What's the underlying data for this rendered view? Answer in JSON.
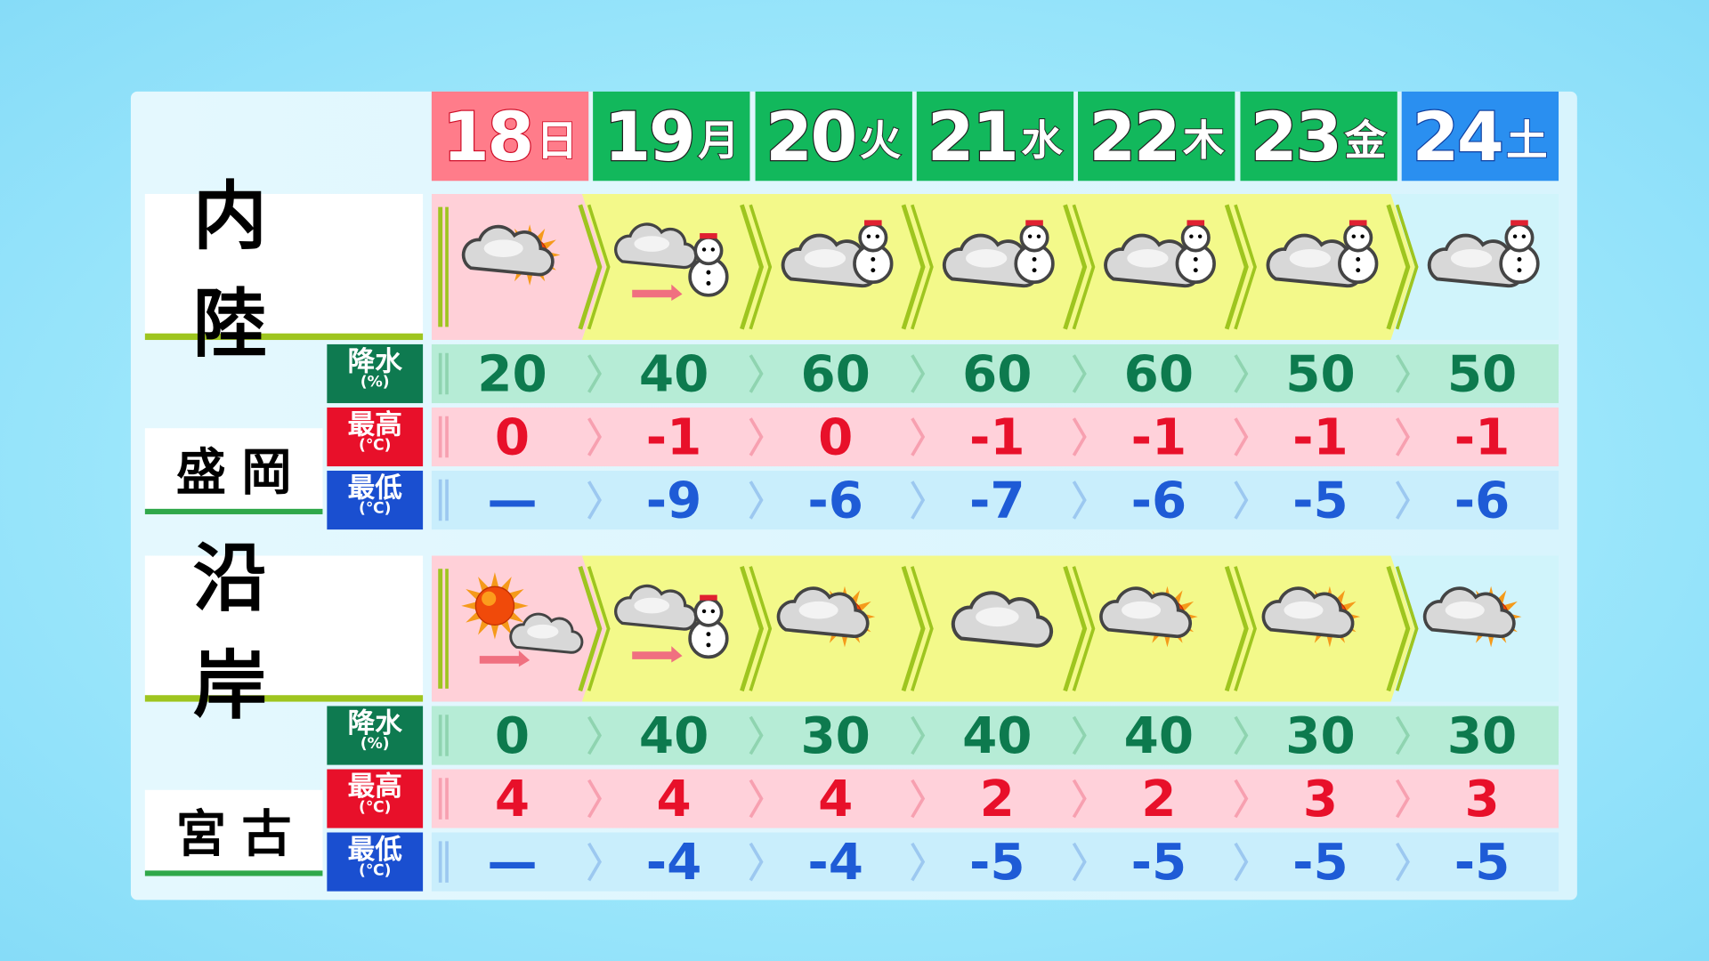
{
  "colors": {
    "sunday": "#ff7c8a",
    "weekday": "#12b85c",
    "saturday": "#2a8ff0",
    "pop_text": "#0d7a4e",
    "max_text": "#e8102a",
    "min_text": "#1e5bd6"
  },
  "days": [
    {
      "num": "18",
      "wd": "日",
      "type": "sunday"
    },
    {
      "num": "19",
      "wd": "月",
      "type": "weekday"
    },
    {
      "num": "20",
      "wd": "火",
      "type": "weekday"
    },
    {
      "num": "21",
      "wd": "水",
      "type": "weekday"
    },
    {
      "num": "22",
      "wd": "木",
      "type": "weekday"
    },
    {
      "num": "23",
      "wd": "金",
      "type": "weekday"
    },
    {
      "num": "24",
      "wd": "土",
      "type": "saturday"
    }
  ],
  "labels": {
    "pop": "降水",
    "pop_unit": "(%)",
    "max": "最高",
    "max_unit": "(℃)",
    "min": "最低",
    "min_unit": "(℃)"
  },
  "sections": [
    {
      "area": "内陸",
      "city": "盛岡",
      "weather": [
        "cloud-sun",
        "cloud-then-snow",
        "cloud-snow",
        "cloud-snow",
        "cloud-snow",
        "cloud-snow",
        "cloud-snow"
      ],
      "pop": [
        "20",
        "40",
        "60",
        "60",
        "60",
        "50",
        "50"
      ],
      "max": [
        "0",
        "-1",
        "0",
        "-1",
        "-1",
        "-1",
        "-1"
      ],
      "min": [
        "—",
        "-9",
        "-6",
        "-7",
        "-6",
        "-5",
        "-6"
      ]
    },
    {
      "area": "沿岸",
      "city": "宮古",
      "weather": [
        "sun-then-cloud",
        "cloud-then-snow",
        "cloud-sun",
        "cloud",
        "cloud-sun",
        "cloud-sun",
        "cloud-sun"
      ],
      "pop": [
        "0",
        "40",
        "30",
        "40",
        "40",
        "30",
        "30"
      ],
      "max": [
        "4",
        "4",
        "4",
        "2",
        "2",
        "3",
        "3"
      ],
      "min": [
        "—",
        "-4",
        "-4",
        "-5",
        "-5",
        "-5",
        "-5"
      ]
    }
  ]
}
